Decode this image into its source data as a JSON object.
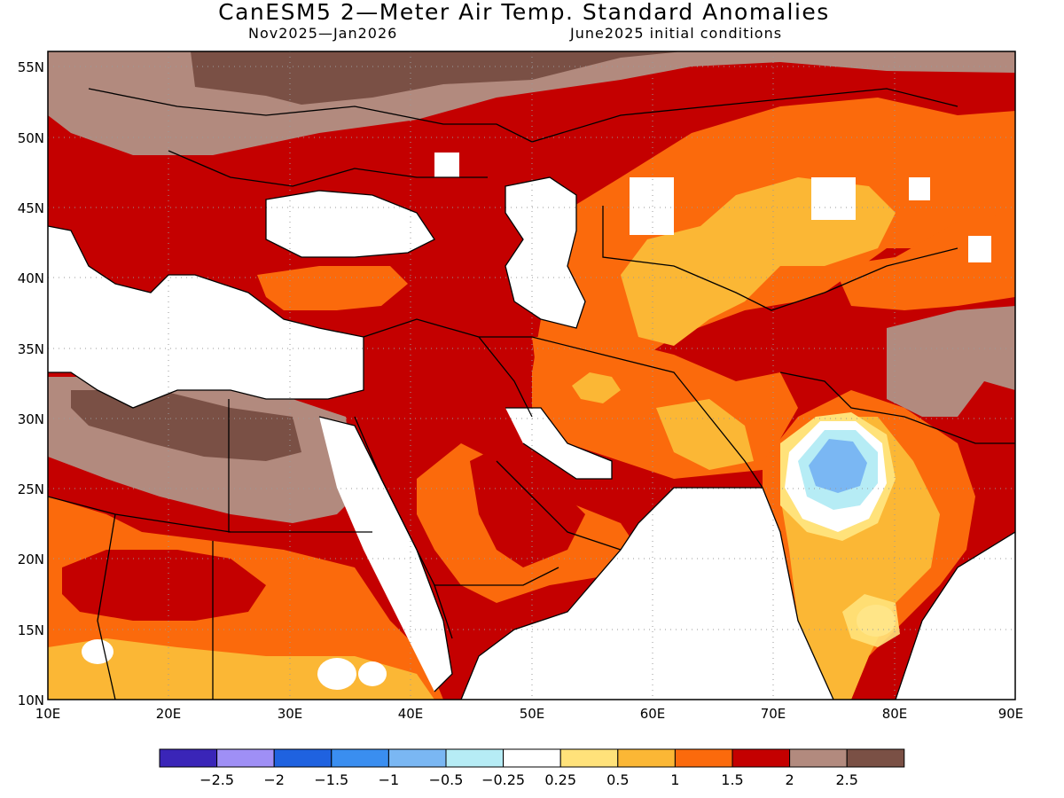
{
  "title": "CanESM5 2—Meter Air Temp. Standard Anomalies",
  "subtitle_left": "Nov2025—Jan2026",
  "subtitle_right": "June2025 initial conditions",
  "lat_labels": [
    "10N",
    "15N",
    "20N",
    "25N",
    "30N",
    "35N",
    "40N",
    "45N",
    "50N",
    "55N"
  ],
  "lon_labels": [
    "10E",
    "20E",
    "30E",
    "40E",
    "50E",
    "60E",
    "70E",
    "80E",
    "90E"
  ],
  "colorbar": {
    "labels": [
      "−2.5",
      "−2",
      "−1.5",
      "−1",
      "−0.5",
      "−0.25",
      "0.25",
      "0.5",
      "1",
      "1.5",
      "2",
      "2.5"
    ],
    "colors": [
      "#3a25b8",
      "#9f8ff6",
      "#1f62e0",
      "#3a8ef0",
      "#7ab7f3",
      "#b6ecf5",
      "#ffffff",
      "#ffe27a",
      "#fbb735",
      "#fb6a0c",
      "#c40000",
      "#b28a7e",
      "#7a5045"
    ]
  },
  "colors": {
    "white": "#ffffff",
    "lt_yellow": "#ffe27a",
    "yellow": "#fbb735",
    "orange": "#fb6a0c",
    "red": "#c40000",
    "brown_light": "#b28a7e",
    "brown_dark": "#7a5045",
    "lt_blue": "#b6ecf5",
    "blue": "#7ab7f3"
  }
}
